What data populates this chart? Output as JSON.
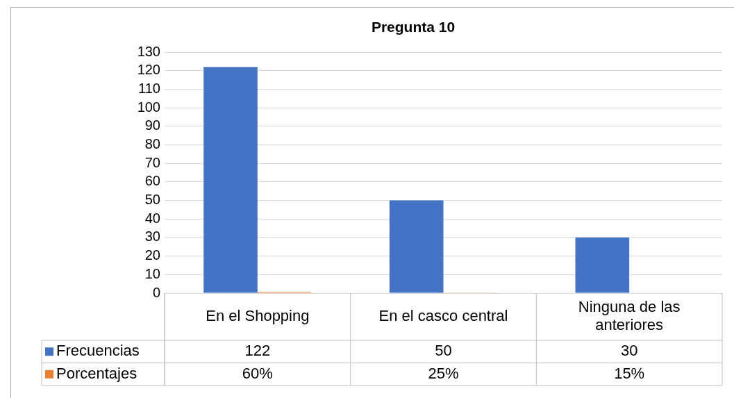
{
  "chart_data": {
    "type": "bar",
    "title": "Pregunta 10",
    "categories": [
      "En el Shopping",
      "En el casco central",
      "Ninguna de las anteriores"
    ],
    "series": [
      {
        "name": "Frecuencias",
        "color": "#4472c4",
        "values": [
          122,
          50,
          30
        ],
        "value_labels": [
          "122",
          "50",
          "30"
        ]
      },
      {
        "name": "Porcentajes",
        "color": "#ed7d31",
        "values": [
          0.6,
          0.25,
          0.15
        ],
        "value_labels": [
          "60%",
          "25%",
          "15%"
        ]
      }
    ],
    "ylim": [
      0,
      130
    ],
    "yticks": [
      0,
      10,
      20,
      30,
      40,
      50,
      60,
      70,
      80,
      90,
      100,
      110,
      120,
      130
    ],
    "grid": "y",
    "legend": "bottom"
  }
}
